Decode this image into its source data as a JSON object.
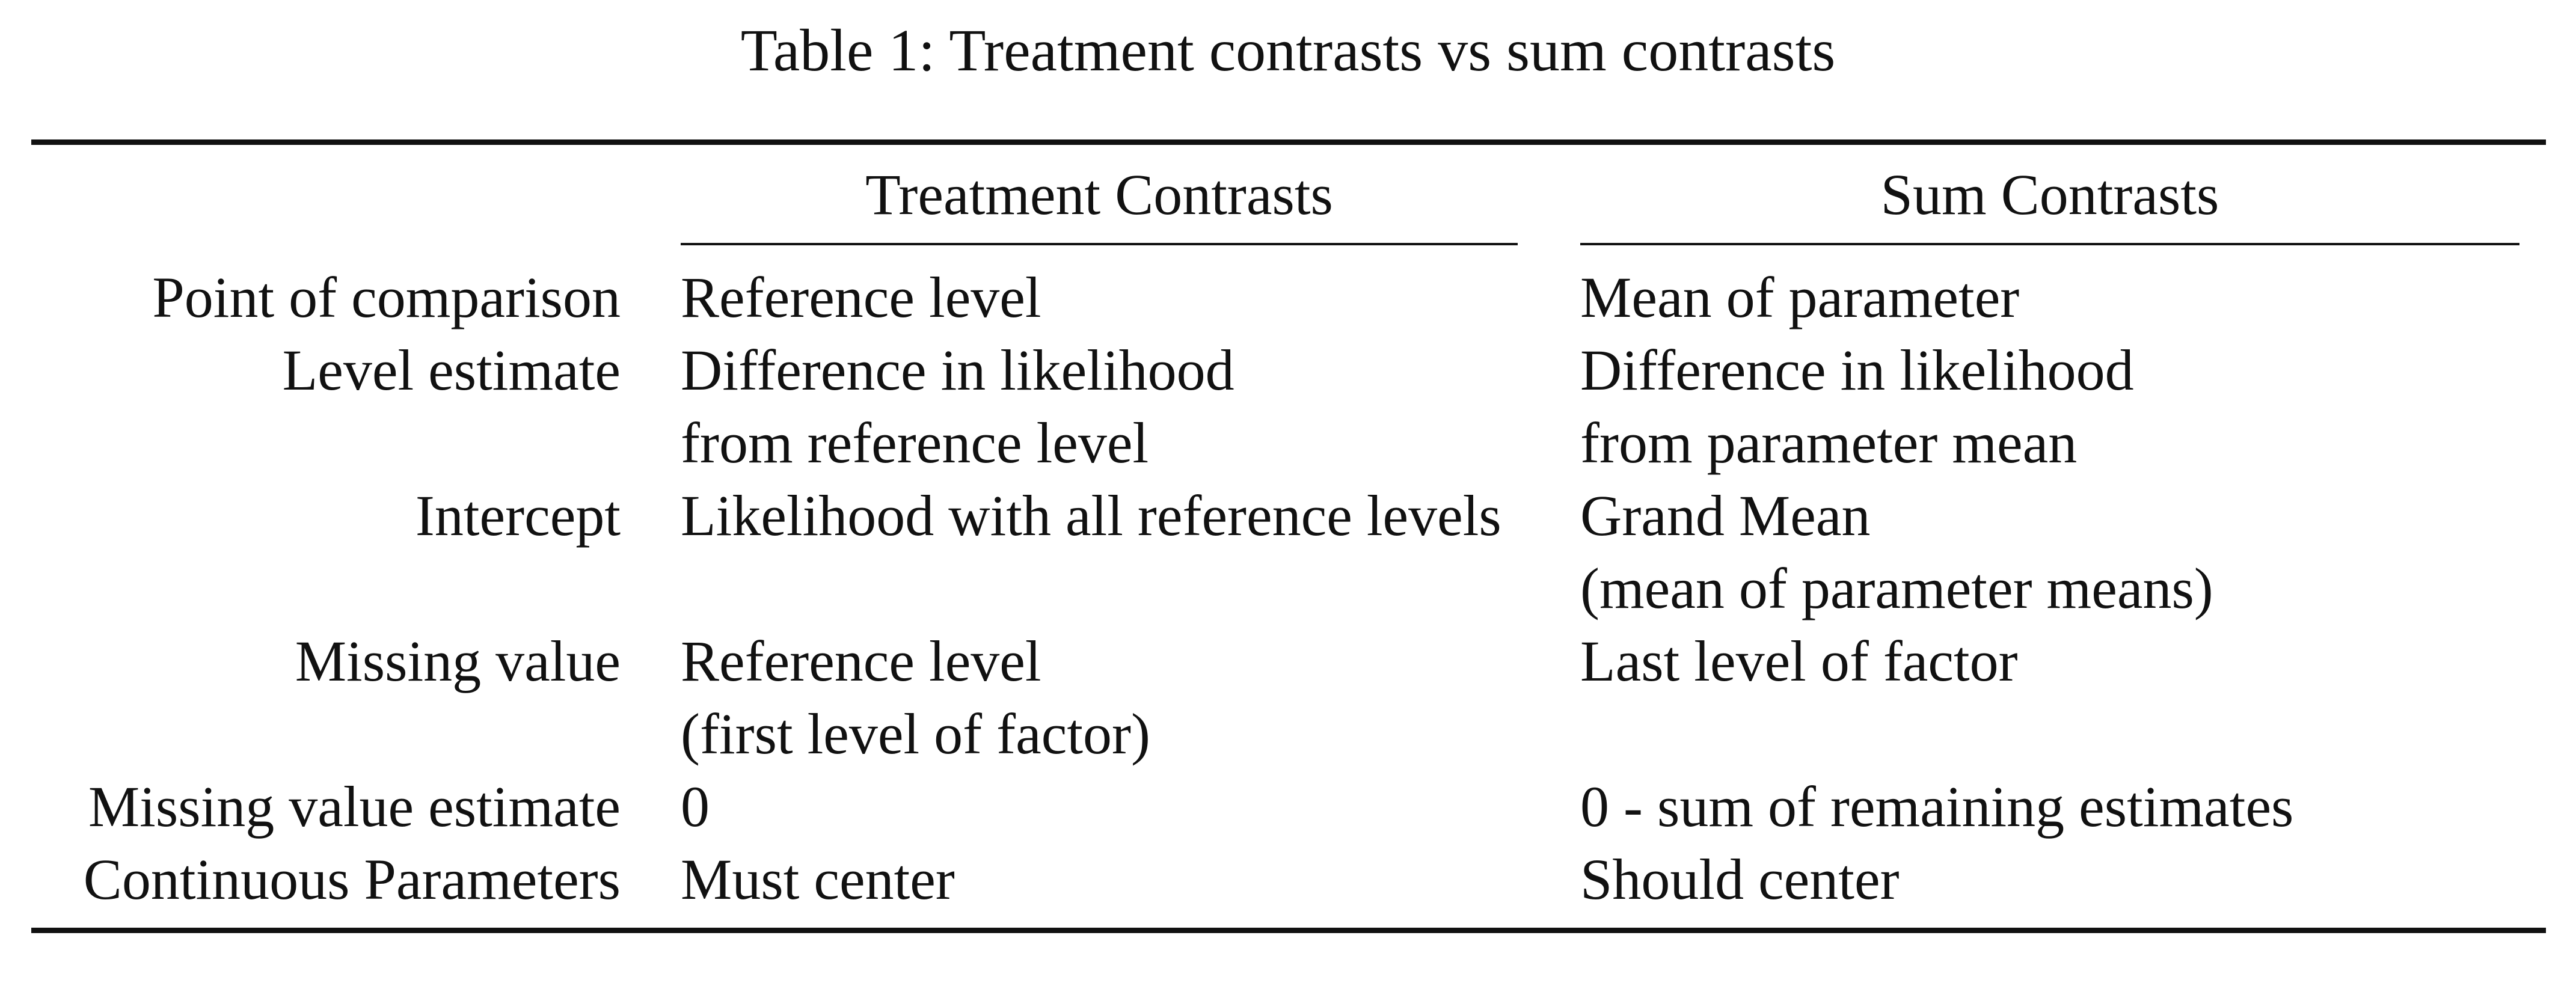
{
  "caption": "Table 1: Treatment contrasts vs sum contrasts",
  "table": {
    "headers": {
      "treatment": "Treatment Contrasts",
      "sum": "Sum Contrasts"
    },
    "rows": [
      {
        "label": "Point of comparison",
        "treatment": [
          "Reference level"
        ],
        "sum": [
          "Mean of parameter"
        ]
      },
      {
        "label": "Level estimate",
        "treatment": [
          "Difference in likelihood",
          "from reference level"
        ],
        "sum": [
          "Difference in likelihood",
          "from parameter mean"
        ]
      },
      {
        "label": "Intercept",
        "treatment": [
          "Likelihood with all reference levels"
        ],
        "sum": [
          "Grand Mean",
          "(mean of parameter means)"
        ]
      },
      {
        "label": "Missing value",
        "treatment": [
          "Reference level",
          "(first level of factor)"
        ],
        "sum": [
          "Last level of factor"
        ]
      },
      {
        "label": "Missing value estimate",
        "treatment": [
          "0"
        ],
        "sum": [
          "0 - sum of remaining estimates"
        ]
      },
      {
        "label": "Continuous Parameters",
        "treatment": [
          "Must center"
        ],
        "sum": [
          "Should center"
        ]
      }
    ]
  }
}
